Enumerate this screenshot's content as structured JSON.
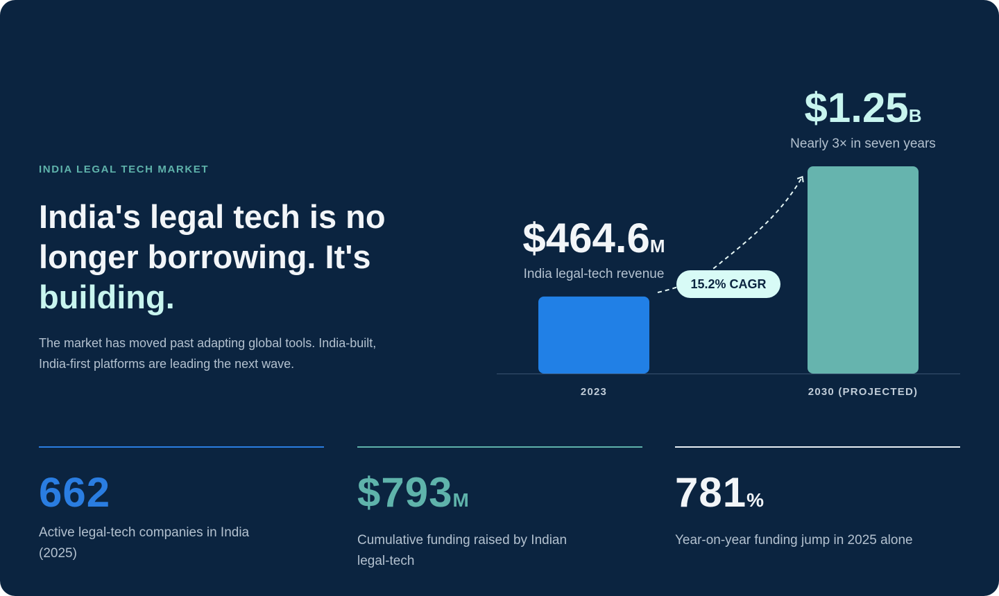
{
  "eyebrow": "INDIA LEGAL TECH MARKET",
  "headline": {
    "lead": "India's legal tech is no longer borrowing. It's",
    "highlight": "building."
  },
  "body": "The market has moved past adapting global tools. India-built, India-first platforms are leading the next wave.",
  "chart": {
    "type": "bar",
    "categories": [
      "2023",
      "2030 (PROJECTED)"
    ],
    "values": [
      464.6,
      1250
    ],
    "value_labels": [
      {
        "number": "$464.6",
        "unit": "M"
      },
      {
        "number": "$1.25",
        "unit": "B"
      }
    ],
    "captions": [
      "India legal-tech revenue",
      "Nearly 3× in seven years"
    ],
    "colors": [
      "#2180e6",
      "#66b4ae"
    ],
    "ylim": [
      0,
      1250
    ],
    "annotation": "15.2% CAGR"
  },
  "stats": [
    {
      "number": "662",
      "caption": "Active legal-tech companies in India (2025)",
      "color": "#2a7de1"
    },
    {
      "number": "$793",
      "unit": "M",
      "caption": "Cumulative funding raised by Indian legal-tech",
      "color": "#5fb3ab"
    },
    {
      "number": "781",
      "unit": "%",
      "caption": "Year-on-year funding jump in 2025 alone",
      "color": "#e8f0f5"
    }
  ]
}
